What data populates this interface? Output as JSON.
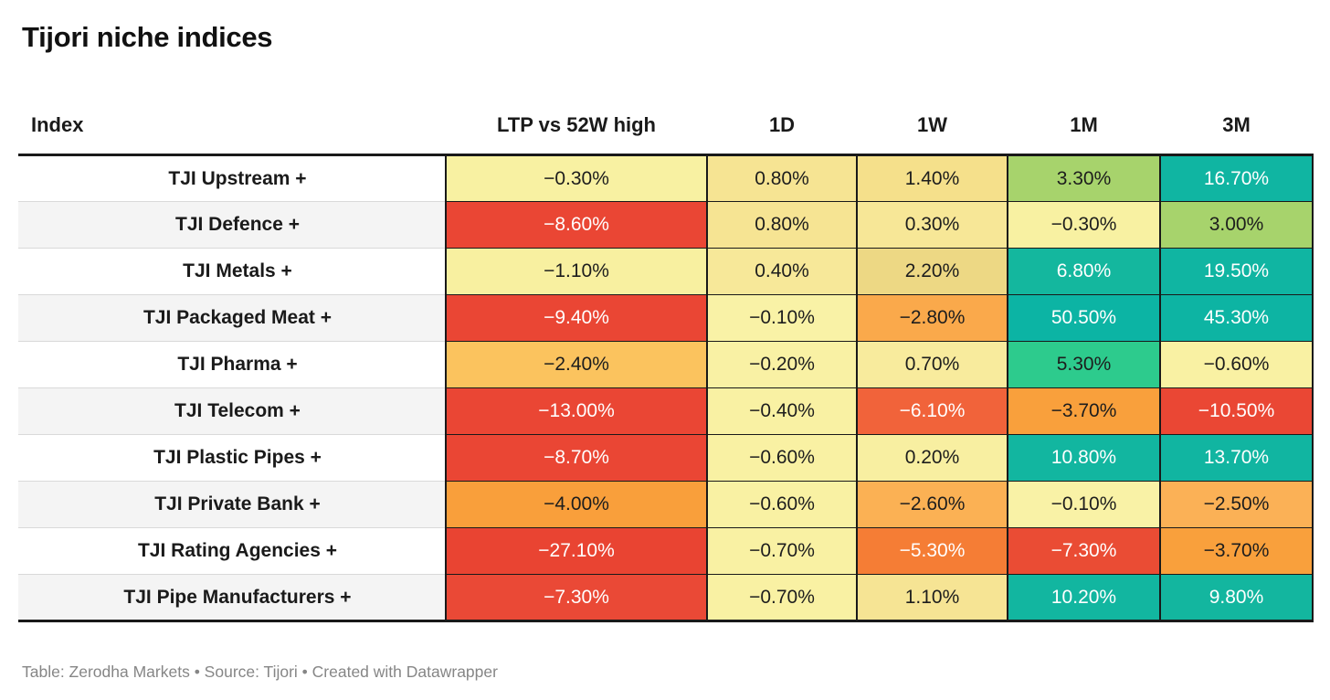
{
  "title": "Tijori niche indices",
  "footer": "Table: Zerodha Markets • Source: Tijori • Created with Datawrapper",
  "table": {
    "columns": [
      "Index",
      "LTP vs 52W high",
      "1D",
      "1W",
      "1M",
      "3M"
    ],
    "rows": [
      {
        "index": "TJI Upstream +",
        "cells": [
          {
            "text": "−0.30%",
            "bg": "#f8f1a2",
            "fg": "#1d1d1d"
          },
          {
            "text": "0.80%",
            "bg": "#f6e493",
            "fg": "#1d1d1d"
          },
          {
            "text": "1.40%",
            "bg": "#f5e08b",
            "fg": "#1d1d1d"
          },
          {
            "text": "3.30%",
            "bg": "#a7d36c",
            "fg": "#1d1d1d"
          },
          {
            "text": "16.70%",
            "bg": "#10b5a2",
            "fg": "#ffffff"
          }
        ]
      },
      {
        "index": "TJI Defence +",
        "cells": [
          {
            "text": "−8.60%",
            "bg": "#ea4634",
            "fg": "#ffffff"
          },
          {
            "text": "0.80%",
            "bg": "#f6e493",
            "fg": "#1d1d1d"
          },
          {
            "text": "0.30%",
            "bg": "#f7e797",
            "fg": "#1d1d1d"
          },
          {
            "text": "−0.30%",
            "bg": "#f8f1a2",
            "fg": "#1d1d1d"
          },
          {
            "text": "3.00%",
            "bg": "#a7d36c",
            "fg": "#1d1d1d"
          }
        ]
      },
      {
        "index": "TJI Metals +",
        "cells": [
          {
            "text": "−1.10%",
            "bg": "#f8f0a0",
            "fg": "#1d1d1d"
          },
          {
            "text": "0.40%",
            "bg": "#f7e899",
            "fg": "#1d1d1d"
          },
          {
            "text": "2.20%",
            "bg": "#edd884",
            "fg": "#1d1d1d"
          },
          {
            "text": "6.80%",
            "bg": "#14b79e",
            "fg": "#ffffff"
          },
          {
            "text": "19.50%",
            "bg": "#10b5a2",
            "fg": "#ffffff"
          }
        ]
      },
      {
        "index": "TJI Packaged Meat +",
        "cells": [
          {
            "text": "−9.40%",
            "bg": "#ea4634",
            "fg": "#ffffff"
          },
          {
            "text": "−0.10%",
            "bg": "#f9f2a6",
            "fg": "#1d1d1d"
          },
          {
            "text": "−2.80%",
            "bg": "#faa94b",
            "fg": "#1d1d1d"
          },
          {
            "text": "50.50%",
            "bg": "#0cb4a4",
            "fg": "#ffffff"
          },
          {
            "text": "45.30%",
            "bg": "#0db4a3",
            "fg": "#ffffff"
          }
        ]
      },
      {
        "index": "TJI Pharma +",
        "cells": [
          {
            "text": "−2.40%",
            "bg": "#fbc35e",
            "fg": "#1d1d1d"
          },
          {
            "text": "−0.20%",
            "bg": "#f9f1a4",
            "fg": "#1d1d1d"
          },
          {
            "text": "0.70%",
            "bg": "#f8eb9d",
            "fg": "#1d1d1d"
          },
          {
            "text": "5.30%",
            "bg": "#2dcb8d",
            "fg": "#1d1d1d"
          },
          {
            "text": "−0.60%",
            "bg": "#f9f1a3",
            "fg": "#1d1d1d"
          }
        ]
      },
      {
        "index": "TJI Telecom +",
        "cells": [
          {
            "text": "−13.00%",
            "bg": "#ea4634",
            "fg": "#ffffff"
          },
          {
            "text": "−0.40%",
            "bg": "#f9f1a3",
            "fg": "#1d1d1d"
          },
          {
            "text": "−6.10%",
            "bg": "#f1633a",
            "fg": "#ffffff"
          },
          {
            "text": "−3.70%",
            "bg": "#f9a03c",
            "fg": "#1d1d1d"
          },
          {
            "text": "−10.50%",
            "bg": "#ea4734",
            "fg": "#ffffff"
          }
        ]
      },
      {
        "index": "TJI Plastic Pipes +",
        "cells": [
          {
            "text": "−8.70%",
            "bg": "#ea4634",
            "fg": "#ffffff"
          },
          {
            "text": "−0.60%",
            "bg": "#f9f1a3",
            "fg": "#1d1d1d"
          },
          {
            "text": "0.20%",
            "bg": "#f8efa1",
            "fg": "#1d1d1d"
          },
          {
            "text": "10.80%",
            "bg": "#12b6a0",
            "fg": "#ffffff"
          },
          {
            "text": "13.70%",
            "bg": "#11b5a1",
            "fg": "#ffffff"
          }
        ]
      },
      {
        "index": "TJI Private Bank +",
        "cells": [
          {
            "text": "−4.00%",
            "bg": "#f99f3b",
            "fg": "#1d1d1d"
          },
          {
            "text": "−0.60%",
            "bg": "#f9f1a3",
            "fg": "#1d1d1d"
          },
          {
            "text": "−2.60%",
            "bg": "#fbb154",
            "fg": "#1d1d1d"
          },
          {
            "text": "−0.10%",
            "bg": "#f9f2a6",
            "fg": "#1d1d1d"
          },
          {
            "text": "−2.50%",
            "bg": "#fbb156",
            "fg": "#1d1d1d"
          }
        ]
      },
      {
        "index": "TJI Rating Agencies +",
        "cells": [
          {
            "text": "−27.10%",
            "bg": "#e94432",
            "fg": "#ffffff"
          },
          {
            "text": "−0.70%",
            "bg": "#f9f1a3",
            "fg": "#1d1d1d"
          },
          {
            "text": "−5.30%",
            "bg": "#f57d35",
            "fg": "#ffffff"
          },
          {
            "text": "−7.30%",
            "bg": "#ea4c34",
            "fg": "#ffffff"
          },
          {
            "text": "−3.70%",
            "bg": "#f9a03c",
            "fg": "#1d1d1d"
          }
        ]
      },
      {
        "index": "TJI Pipe Manufacturers +",
        "cells": [
          {
            "text": "−7.30%",
            "bg": "#ea4936",
            "fg": "#ffffff"
          },
          {
            "text": "−0.70%",
            "bg": "#f9f1a3",
            "fg": "#1d1d1d"
          },
          {
            "text": "1.10%",
            "bg": "#f6e494",
            "fg": "#1d1d1d"
          },
          {
            "text": "10.20%",
            "bg": "#12b6a0",
            "fg": "#ffffff"
          },
          {
            "text": "9.80%",
            "bg": "#13b69f",
            "fg": "#ffffff"
          }
        ]
      }
    ]
  },
  "chart_data": {
    "type": "table",
    "title": "Tijori niche indices",
    "columns": [
      "Index",
      "LTP vs 52W high",
      "1D",
      "1W",
      "1M",
      "3M"
    ],
    "rows": [
      [
        "TJI Upstream +",
        -0.3,
        0.8,
        1.4,
        3.3,
        16.7
      ],
      [
        "TJI Defence +",
        -8.6,
        0.8,
        0.3,
        -0.3,
        3.0
      ],
      [
        "TJI Metals +",
        -1.1,
        0.4,
        2.2,
        6.8,
        19.5
      ],
      [
        "TJI Packaged Meat +",
        -9.4,
        -0.1,
        -2.8,
        50.5,
        45.3
      ],
      [
        "TJI Pharma +",
        -2.4,
        -0.2,
        0.7,
        5.3,
        -0.6
      ],
      [
        "TJI Telecom +",
        -13.0,
        -0.4,
        -6.1,
        -3.7,
        -10.5
      ],
      [
        "TJI Plastic Pipes +",
        -8.7,
        -0.6,
        0.2,
        10.8,
        13.7
      ],
      [
        "TJI Private Bank +",
        -4.0,
        -0.6,
        -2.6,
        -0.1,
        -2.5
      ],
      [
        "TJI Rating Agencies +",
        -27.1,
        -0.7,
        -5.3,
        -7.3,
        -3.7
      ],
      [
        "TJI Pipe Manufacturers +",
        -7.3,
        -0.7,
        1.1,
        10.2,
        9.8
      ]
    ],
    "value_unit": "%",
    "color_encoding": "diverging heatmap: red (negative) → pale yellow (≈0) → green/teal (positive)",
    "colors": {
      "negative_strong": "#ea4634",
      "negative_mid": "#f9a03c",
      "neutral": "#f9f1a3",
      "positive_mid": "#a7d36c",
      "positive_strong": "#10b5a2"
    },
    "footnote": "Table: Zerodha Markets • Source: Tijori • Created with Datawrapper"
  }
}
